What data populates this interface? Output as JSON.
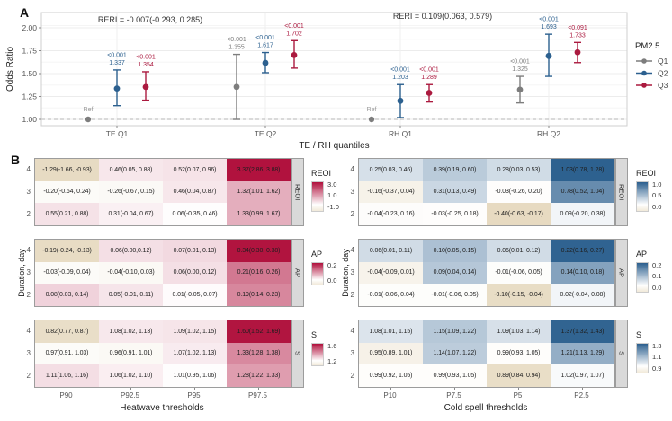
{
  "figure": {
    "panel_a_label": "A",
    "panel_b_label": "B"
  },
  "colors": {
    "series_q1": "#7d7d7d",
    "series_q2": "#2C608F",
    "series_q3": "#AB1A3F",
    "heat_pos_red": "#B0103C",
    "cold_pos_blue": "#2B5F8E",
    "neg_tan": "#D8C49C",
    "strip_gray": "#d9d9d9"
  },
  "chart_data": [
    {
      "type": "scatter",
      "subtype": "forest-pointrange",
      "panel_label": "A",
      "ylabel": "Odds Ratio",
      "xlabel": "TE / RH quantiles",
      "ylim": [
        0.95,
        2.1
      ],
      "yticks": [
        "1.00",
        "1.25",
        "1.50",
        "1.75",
        "2.00"
      ],
      "grid": true,
      "ref_line": 1.0,
      "annotations": [
        {
          "text": "RERI = -0.007(-0.293, 0.285)",
          "x": 167,
          "y": 25
        },
        {
          "text": "RERI = 0.109(0.063, 0.579)",
          "x": 492,
          "y": 21
        }
      ],
      "legend": {
        "title": "PM2.5",
        "position": "right",
        "items": [
          {
            "label": "Q1",
            "color": "#7d7d7d"
          },
          {
            "label": "Q2",
            "color": "#2C608F"
          },
          {
            "label": "Q3",
            "color": "#AB1A3F"
          }
        ]
      },
      "groups": [
        {
          "label": "TE Q1",
          "points": [
            {
              "series": "Q1",
              "ref": true,
              "or": 1.0,
              "note": "Ref"
            },
            {
              "series": "Q2",
              "or": 1.337,
              "lo": 1.15,
              "hi": 1.54,
              "p": "<0.001",
              "value_label": "1.337"
            },
            {
              "series": "Q3",
              "or": 1.354,
              "lo": 1.21,
              "hi": 1.52,
              "p": "<0.001",
              "value_label": "1.354"
            }
          ]
        },
        {
          "label": "TE Q2",
          "points": [
            {
              "series": "Q1",
              "or": 1.355,
              "lo": 1.0,
              "hi": 1.71,
              "p": "<0.001",
              "value_label": "1.355"
            },
            {
              "series": "Q2",
              "or": 1.617,
              "lo": 1.51,
              "hi": 1.73,
              "p": "<0.001",
              "value_label": "1.617"
            },
            {
              "series": "Q3",
              "or": 1.702,
              "lo": 1.56,
              "hi": 1.86,
              "p": "<0.001",
              "value_label": "1.702"
            }
          ]
        },
        {
          "label": "RH Q1",
          "points": [
            {
              "series": "Q1",
              "ref": true,
              "or": 1.0,
              "note": "Ref"
            },
            {
              "series": "Q2",
              "or": 1.203,
              "lo": 1.02,
              "hi": 1.38,
              "p": "<0.001",
              "value_label": "1.203"
            },
            {
              "series": "Q3",
              "or": 1.289,
              "lo": 1.19,
              "hi": 1.38,
              "p": "<0.001",
              "value_label": "1.289"
            }
          ]
        },
        {
          "label": "RH Q2",
          "points": [
            {
              "series": "Q1",
              "or": 1.325,
              "lo": 1.18,
              "hi": 1.47,
              "p": "<0.001",
              "value_label": "1.325"
            },
            {
              "series": "Q2",
              "or": 1.693,
              "lo": 1.47,
              "hi": 1.93,
              "p": "<0.001",
              "value_label": "1.693"
            },
            {
              "series": "Q3",
              "or": 1.733,
              "lo": 1.62,
              "hi": 1.84,
              "p": "<0.091",
              "value_label": "1.733"
            }
          ]
        }
      ]
    },
    {
      "type": "heatmap",
      "panel_label": "B",
      "xlabel": "Heatwave thresholds",
      "ylabel": "Duration, day",
      "columns": [
        "P90",
        "P92.5",
        "P95",
        "P97.5"
      ],
      "rows": [
        "4",
        "3",
        "2"
      ],
      "pos_color": "#B0103C",
      "neg_color": "#D8C49C",
      "panels": [
        {
          "name": "REOI",
          "scale": {
            "neutral": 0,
            "pos_max": 3.4,
            "neg_min": -2.0
          },
          "legend": {
            "title": "REOI",
            "ticks": [
              "3.0",
              "1.0",
              "-1.0"
            ]
          },
          "values": [
            [
              -1.29,
              0.46,
              0.52,
              3.37
            ],
            [
              -0.2,
              -0.26,
              0.46,
              1.32
            ],
            [
              0.55,
              0.31,
              0.06,
              1.33
            ]
          ],
          "labels": [
            [
              "-1.29(-1.66, -0.93)",
              "0.46(0.05, 0.88)",
              "0.52(0.07, 0.96)",
              "3.37(2.86, 3.88)"
            ],
            [
              "-0.20(-0.64, 0.24)",
              "-0.26(-0.67, 0.15)",
              "0.46(0.04, 0.87)",
              "1.32(1.01, 1.62)"
            ],
            [
              "0.55(0.21, 0.88)",
              "0.31(-0.04, 0.67)",
              "0.06(-0.35, 0.46)",
              "1.33(0.99, 1.67)"
            ]
          ]
        },
        {
          "name": "AP",
          "scale": {
            "neutral": 0,
            "pos_max": 0.345,
            "neg_min": -0.3
          },
          "legend": {
            "title": "AP",
            "ticks": [
              "0.2",
              "0.0"
            ]
          },
          "values": [
            [
              -0.19,
              0.06,
              0.07,
              0.34
            ],
            [
              -0.03,
              -0.04,
              0.06,
              0.21
            ],
            [
              0.08,
              0.05,
              0.01,
              0.19
            ]
          ],
          "labels": [
            [
              "-0.19(-0.24, -0.13)",
              "0.06(0.00,0.12)",
              "0.07(0.01, 0.13)",
              "0.34(0.30, 0.38)"
            ],
            [
              "-0.03(-0.09, 0.04)",
              "-0.04(-0.10, 0.03)",
              "0.06(0.00, 0.12)",
              "0.21(0.16, 0.26)"
            ],
            [
              "0.08(0.03, 0.14)",
              "0.05(-0.01, 0.11)",
              "0.01(-0.05, 0.07)",
              "0.19(0.14, 0.23)"
            ]
          ]
        },
        {
          "name": "S",
          "scale": {
            "neutral": 1.0,
            "pos_max": 1.61,
            "neg_min": 0.7
          },
          "legend": {
            "title": "S",
            "ticks": [
              "1.6",
              "1.2"
            ]
          },
          "values": [
            [
              0.82,
              1.08,
              1.09,
              1.6
            ],
            [
              0.97,
              0.96,
              1.07,
              1.33
            ],
            [
              1.11,
              1.06,
              1.01,
              1.28
            ]
          ],
          "labels": [
            [
              "0.82(0.77, 0.87)",
              "1.08(1.02, 1.13)",
              "1.09(1.02, 1.15)",
              "1.60(1.52, 1.69)"
            ],
            [
              "0.97(0.91, 1.03)",
              "0.96(0.91, 1.01)",
              "1.07(1.02, 1.13)",
              "1.33(1.28, 1.38)"
            ],
            [
              "1.11(1.06, 1.16)",
              "1.06(1.02, 1.10)",
              "1.01(0.95, 1.06)",
              "1.28(1.22, 1.33)"
            ]
          ]
        }
      ]
    },
    {
      "type": "heatmap",
      "xlabel": "Cold spell thresholds",
      "ylabel": "Duration, day",
      "columns": [
        "P10",
        "P7.5",
        "P5",
        "P2.5"
      ],
      "rows": [
        "4",
        "3",
        "2"
      ],
      "pos_color": "#2B5F8E",
      "neg_color": "#D8C49C",
      "panels": [
        {
          "name": "REOI",
          "scale": {
            "neutral": 0,
            "pos_max": 1.04,
            "neg_min": -0.6
          },
          "legend": {
            "title": "REOI",
            "ticks": [
              "1.0",
              "0.5",
              "0.0"
            ]
          },
          "values": [
            [
              0.25,
              0.39,
              0.28,
              1.03
            ],
            [
              -0.16,
              0.31,
              -0.03,
              0.78
            ],
            [
              -0.04,
              -0.03,
              -0.4,
              0.09
            ]
          ],
          "labels": [
            [
              "0.25(0.03, 0.46)",
              "0.39(0.19, 0.60)",
              "0.28(0.03, 0.53)",
              "1.03(0.78, 1.28)"
            ],
            [
              "-0.16(-0.37, 0.04)",
              "0.31(0.13, 0.49)",
              "-0.03(-0.26, 0.20)",
              "0.78(0.52, 1.04)"
            ],
            [
              "-0.04(-0.23, 0.16)",
              "-0.03(-0.25, 0.18)",
              "-0.40(-0.63, -0.17)",
              "0.09(-0.20, 0.38)"
            ]
          ]
        },
        {
          "name": "AP",
          "scale": {
            "neutral": 0,
            "pos_max": 0.225,
            "neg_min": -0.16
          },
          "legend": {
            "title": "AP",
            "ticks": [
              "0.2",
              "0.1",
              "0.0"
            ]
          },
          "values": [
            [
              0.06,
              0.1,
              0.06,
              0.22
            ],
            [
              -0.04,
              0.09,
              -0.01,
              0.14
            ],
            [
              -0.01,
              -0.01,
              -0.1,
              0.02
            ]
          ],
          "labels": [
            [
              "0.06(0.01, 0.11)",
              "0.10(0.05, 0.15)",
              "0.06(0.01, 0.12)",
              "0.22(0.16, 0.27)"
            ],
            [
              "-0.04(-0.09, 0.01)",
              "0.09(0.04, 0.14)",
              "-0.01(-0.06, 0.05)",
              "0.14(0.10, 0.18)"
            ],
            [
              "-0.01(-0.06, 0.04)",
              "-0.01(-0.06, 0.05)",
              "-0.10(-0.15, -0.04)",
              "0.02(-0.04, 0.08)"
            ]
          ]
        },
        {
          "name": "S",
          "scale": {
            "neutral": 1.0,
            "pos_max": 1.38,
            "neg_min": 0.82
          },
          "legend": {
            "title": "S",
            "ticks": [
              "1.3",
              "1.1",
              "0.9"
            ]
          },
          "values": [
            [
              1.08,
              1.15,
              1.09,
              1.37
            ],
            [
              0.95,
              1.14,
              0.99,
              1.21
            ],
            [
              0.99,
              0.99,
              0.89,
              1.02
            ]
          ],
          "labels": [
            [
              "1.08(1.01, 1.15)",
              "1.15(1.09, 1.22)",
              "1.09(1.03, 1.14)",
              "1.37(1.32, 1.43)"
            ],
            [
              "0.95(0.89, 1.01)",
              "1.14(1.07, 1.22)",
              "0.99(0.93, 1.05)",
              "1.21(1.13, 1.29)"
            ],
            [
              "0.99(0.92, 1.05)",
              "0.99(0.93, 1.05)",
              "0.89(0.84, 0.94)",
              "1.02(0.97, 1.07)"
            ]
          ]
        }
      ]
    }
  ]
}
